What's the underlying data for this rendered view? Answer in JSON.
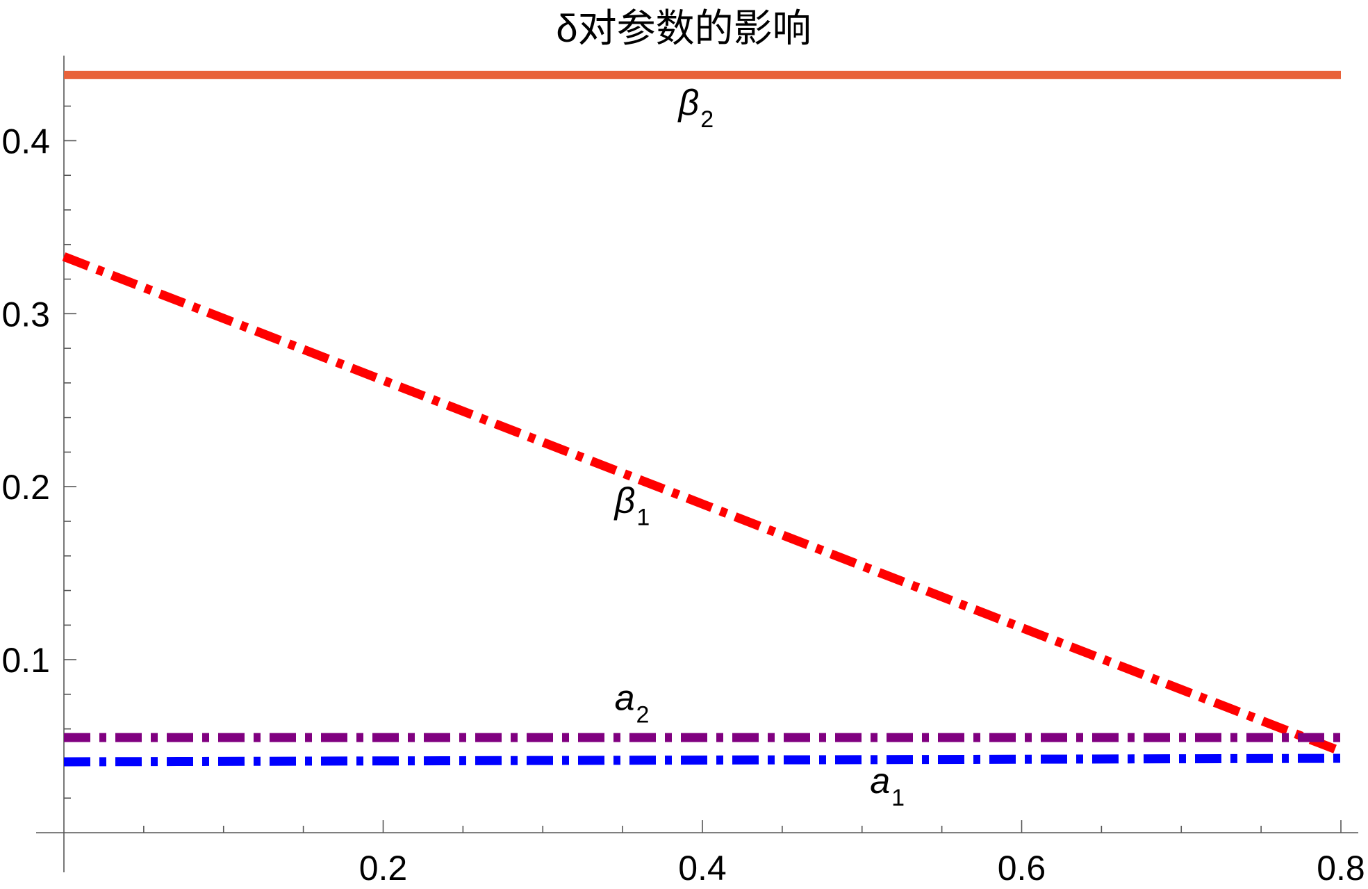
{
  "chart_data": {
    "type": "line",
    "title": "δ对参数的影响",
    "xlabel": "",
    "ylabel": "",
    "xlim": [
      0.0,
      0.8
    ],
    "ylim": [
      0.0,
      0.45
    ],
    "grid": false,
    "x_ticks": [
      {
        "value": 0.2,
        "label": "0.2"
      },
      {
        "value": 0.4,
        "label": "0.4"
      },
      {
        "value": 0.6,
        "label": "0.6"
      },
      {
        "value": 0.8,
        "label": "0.8"
      }
    ],
    "y_ticks": [
      {
        "value": 0.1,
        "label": "0.1"
      },
      {
        "value": 0.2,
        "label": "0.2"
      },
      {
        "value": 0.3,
        "label": "0.3"
      },
      {
        "value": 0.4,
        "label": "0.4"
      }
    ],
    "series": [
      {
        "name": "β",
        "subscript": "2",
        "color": "#e8623a",
        "style": "solid",
        "x": [
          0.0,
          0.8
        ],
        "y": [
          0.438,
          0.438
        ],
        "label_at": [
          0.385,
          0.415
        ]
      },
      {
        "name": "β",
        "subscript": "1",
        "color": "#ff0000",
        "style": "dashdot",
        "x": [
          0.0,
          0.8
        ],
        "y": [
          0.333,
          0.047
        ],
        "label_at": [
          0.345,
          0.185
        ]
      },
      {
        "name": "a",
        "subscript": "2",
        "color": "#800080",
        "style": "dashdot",
        "x": [
          0.0,
          0.8
        ],
        "y": [
          0.055,
          0.055
        ],
        "label_at": [
          0.345,
          0.071
        ]
      },
      {
        "name": "a",
        "subscript": "1",
        "color": "#0000ff",
        "style": "dashdot",
        "x": [
          0.0,
          0.8
        ],
        "y": [
          0.041,
          0.043
        ],
        "label_at": [
          0.505,
          0.023
        ]
      }
    ]
  }
}
